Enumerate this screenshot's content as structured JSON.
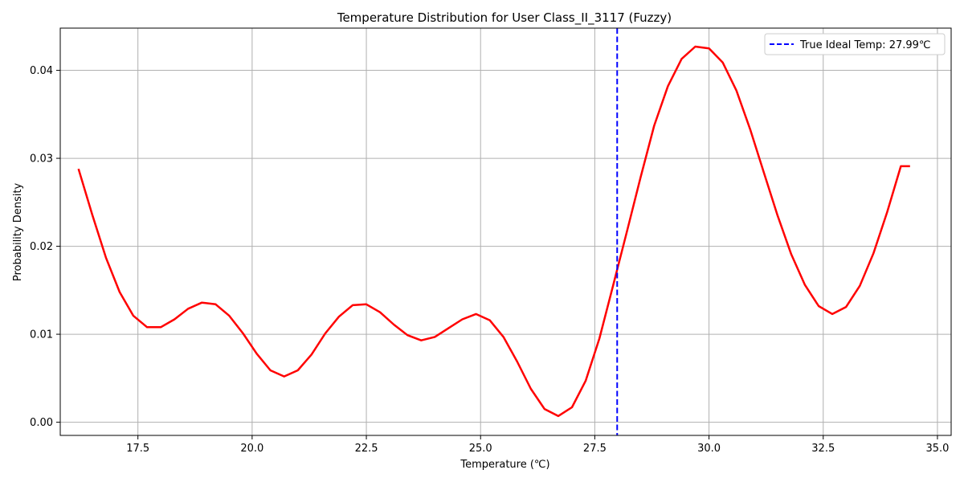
{
  "chart_data": {
    "type": "line",
    "title": "Temperature Distribution for User Class_II_3117 (Fuzzy)",
    "xlabel": "Temperature (℃)",
    "ylabel": "Probability Density",
    "xlim": [
      15.8,
      35.3
    ],
    "ylim": [
      -0.0015,
      0.0448
    ],
    "xticks": [
      17.5,
      20.0,
      22.5,
      25.0,
      27.5,
      30.0,
      32.5,
      35.0
    ],
    "xtick_labels": [
      "17.5",
      "20.0",
      "22.5",
      "25.0",
      "27.5",
      "30.0",
      "32.5",
      "35.0"
    ],
    "yticks": [
      0.0,
      0.01,
      0.02,
      0.03,
      0.04
    ],
    "ytick_labels": [
      "0.00",
      "0.01",
      "0.02",
      "0.03",
      "0.04"
    ],
    "grid": true,
    "legend_position": "top-right",
    "series": [
      {
        "name": "",
        "color": "#ff0000",
        "x": [
          16.2,
          16.5,
          16.8,
          17.1,
          17.4,
          17.7,
          18.0,
          18.3,
          18.6,
          18.9,
          19.2,
          19.5,
          19.8,
          20.1,
          20.4,
          20.7,
          21.0,
          21.3,
          21.6,
          21.9,
          22.2,
          22.5,
          22.8,
          23.1,
          23.4,
          23.7,
          24.0,
          24.3,
          24.6,
          24.9,
          25.2,
          25.5,
          25.8,
          26.1,
          26.4,
          26.7,
          27.0,
          27.3,
          27.6,
          27.9,
          28.2,
          28.5,
          28.8,
          29.1,
          29.4,
          29.7,
          30.0,
          30.3,
          30.6,
          30.9,
          31.2,
          31.5,
          31.8,
          32.1,
          32.4,
          32.7,
          33.0,
          33.3,
          33.6,
          33.9,
          34.2,
          34.4
        ],
        "y": [
          0.0288,
          0.0236,
          0.0187,
          0.0148,
          0.0121,
          0.0108,
          0.0108,
          0.0117,
          0.0129,
          0.0136,
          0.0134,
          0.0121,
          0.0101,
          0.0078,
          0.0059,
          0.0052,
          0.0059,
          0.0077,
          0.0101,
          0.012,
          0.0133,
          0.0134,
          0.0125,
          0.0111,
          0.0099,
          0.0093,
          0.0097,
          0.0107,
          0.0117,
          0.0123,
          0.0116,
          0.0097,
          0.0069,
          0.0038,
          0.0015,
          0.0007,
          0.0017,
          0.0047,
          0.0095,
          0.0155,
          0.0216,
          0.0278,
          0.0337,
          0.0382,
          0.0413,
          0.0427,
          0.0425,
          0.0409,
          0.0377,
          0.0333,
          0.0284,
          0.0235,
          0.0191,
          0.0156,
          0.0132,
          0.0123,
          0.0131,
          0.0155,
          0.0192,
          0.0239,
          0.0291,
          0.0291
        ]
      },
      {
        "name": "True Ideal Temp: 27.99℃",
        "color": "#0000ff",
        "style": "dashed",
        "vline_x": 27.99
      }
    ]
  }
}
